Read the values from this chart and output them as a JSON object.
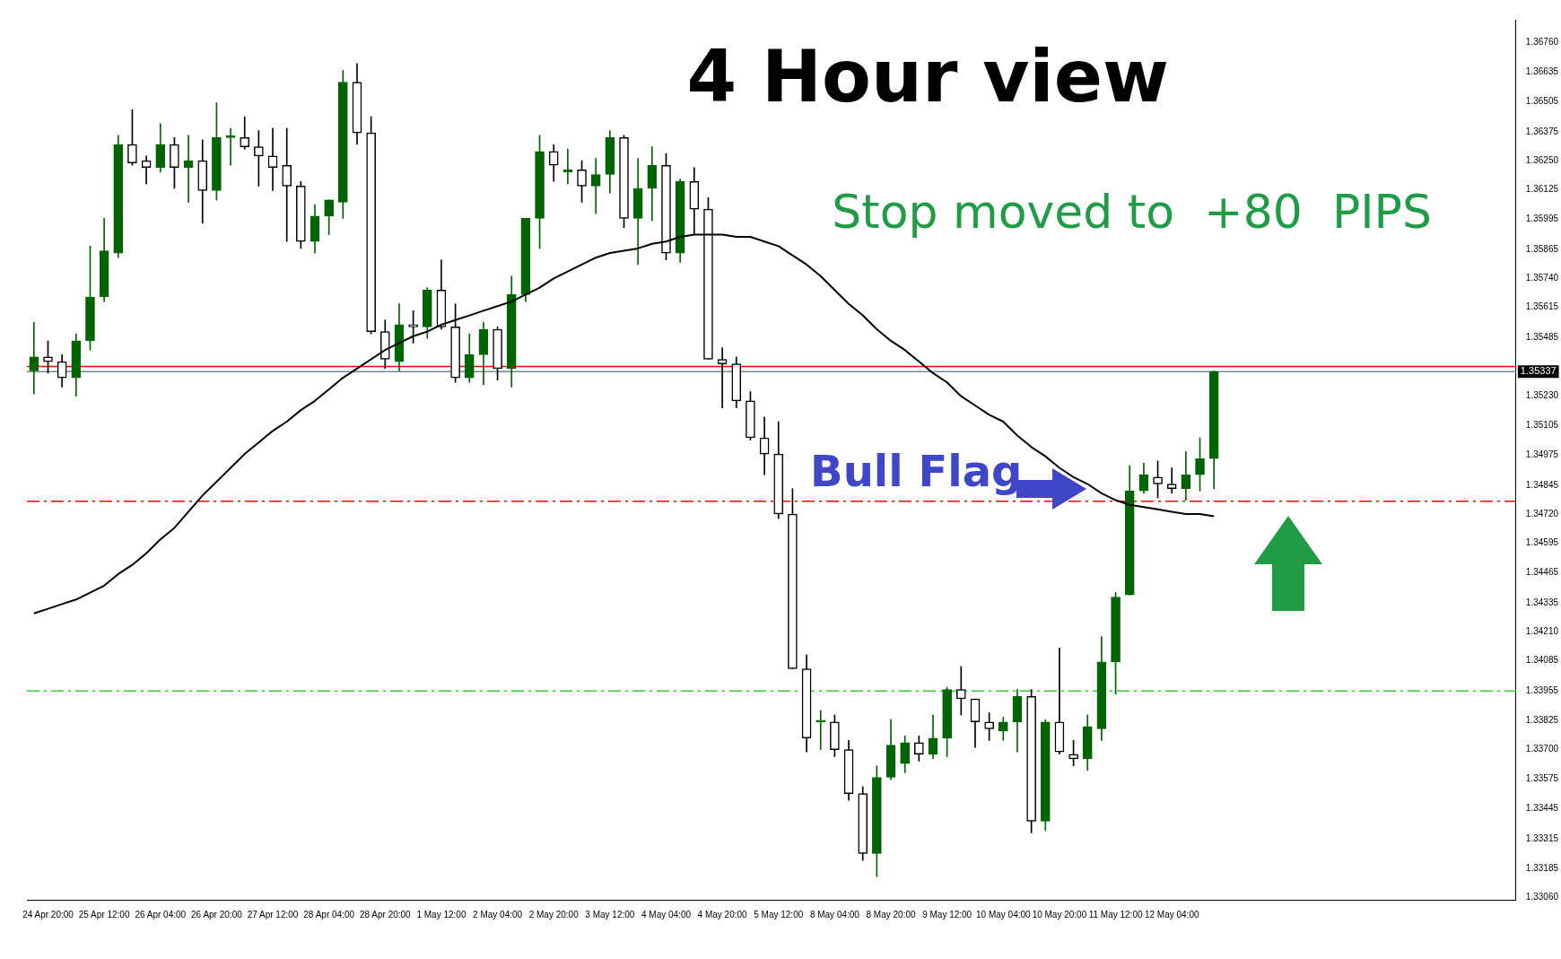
{
  "chart_data": {
    "type": "candlestick",
    "title": "4 Hour view",
    "annotations": [
      "Stop moved to  +80  PIPS",
      "Bull Flag"
    ],
    "categories": [
      null,
      "24 Apr 20:00",
      null,
      null,
      null,
      "25 Apr 12:00",
      null,
      null,
      null,
      "26 Apr 04:00",
      null,
      null,
      null,
      "26 Apr 20:00",
      null,
      null,
      null,
      "27 Apr 12:00",
      null,
      null,
      null,
      "28 Apr 04:00",
      null,
      null,
      null,
      "28 Apr 20:00",
      null,
      null,
      null,
      "1 May 12:00",
      null,
      null,
      null,
      "2 May 04:00",
      null,
      null,
      null,
      "2 May 20:00",
      null,
      null,
      null,
      "3 May 12:00",
      null,
      null,
      null,
      "4 May 04:00",
      null,
      null,
      null,
      "4 May 20:00",
      null,
      null,
      null,
      "5 May 12:00",
      null,
      null,
      null,
      "8 May 04:00",
      null,
      null,
      null,
      "8 May 20:00",
      null,
      null,
      null,
      "9 May 12:00",
      null,
      null,
      null,
      "10 May 04:00",
      null,
      null,
      null,
      "10 May 20:00",
      null,
      null,
      null,
      "11 May 12:00",
      null,
      null,
      null,
      "12 May 04:00",
      null,
      null,
      null,
      null,
      null,
      null,
      null,
      null,
      null,
      null,
      null,
      null,
      null,
      null,
      null,
      null,
      null,
      null,
      null,
      null,
      null,
      null,
      null,
      null
    ],
    "colors": [
      "#006400",
      "#000000",
      "#000000",
      "#006400",
      "#006400",
      "#006400",
      "#006400",
      "#000000",
      "#000000",
      "#006400",
      "#000000",
      "#006400",
      "#000000",
      "#006400",
      "#006400",
      "#000000",
      "#000000",
      "#000000",
      "#000000",
      "#000000",
      "#006400",
      "#006400",
      "#006400",
      "#000000",
      "#000000",
      "#000000",
      "#006400",
      "#000000",
      "#006400",
      "#000000",
      "#000000",
      "#006400",
      "#006400",
      "#000000",
      "#006400",
      "#006400",
      "#006400",
      "#000000",
      "#006400",
      "#000000",
      "#006400",
      "#006400",
      "#000000",
      "#006400",
      "#006400",
      "#000000",
      "#006400",
      "#000000",
      "#000000",
      "#000000",
      "#000000",
      "#000000",
      "#000000",
      "#000000",
      "#000000",
      "#000000",
      "#006400",
      "#000000",
      "#000000",
      "#000000",
      "#006400",
      "#006400",
      "#006400",
      "#000000",
      "#006400",
      "#006400",
      "#000000",
      "#000000",
      "#000000",
      "#006400",
      "#006400",
      "#000000",
      "#006400",
      "#000000",
      "#000000",
      "#006400",
      "#006400",
      "#006400",
      "#006400",
      "#006400",
      "#000000",
      "#000000",
      "#006400",
      "#006400",
      "#006400",
      null,
      null,
      null,
      null,
      null,
      null,
      null,
      null,
      null,
      null,
      null,
      null,
      null,
      null,
      null,
      null,
      null,
      null,
      null,
      null,
      null
    ],
    "ohlc": [
      [
        1.3534,
        1.3555,
        1.3524,
        1.354
      ],
      [
        1.354,
        1.3547,
        1.3533,
        1.3538
      ],
      [
        1.3538,
        1.3541,
        1.3527,
        1.3531
      ],
      [
        1.3531,
        1.355,
        1.3523,
        1.3547
      ],
      [
        1.3547,
        1.3588,
        1.3543,
        1.3566
      ],
      [
        1.3566,
        1.36,
        1.3564,
        1.3586
      ],
      [
        1.3585,
        1.3636,
        1.3583,
        1.3632
      ],
      [
        1.3632,
        1.3647,
        1.3623,
        1.3624
      ],
      [
        1.3625,
        1.3627,
        1.3615,
        1.3622
      ],
      [
        1.3622,
        1.3641,
        1.362,
        1.3632
      ],
      [
        1.3632,
        1.3635,
        1.3613,
        1.3622
      ],
      [
        1.3622,
        1.3636,
        1.3607,
        1.3625
      ],
      [
        1.3625,
        1.3634,
        1.3598,
        1.3612
      ],
      [
        1.3612,
        1.365,
        1.3608,
        1.3635
      ],
      [
        1.3635,
        1.3639,
        1.3623,
        1.3635
      ],
      [
        1.3635,
        1.3644,
        1.363,
        1.3631
      ],
      [
        1.3631,
        1.3638,
        1.3614,
        1.3627
      ],
      [
        1.3627,
        1.3639,
        1.3612,
        1.3622
      ],
      [
        1.3623,
        1.3639,
        1.359,
        1.3614
      ],
      [
        1.3614,
        1.3616,
        1.3587,
        1.359
      ],
      [
        1.359,
        1.3606,
        1.3585,
        1.3601
      ],
      [
        1.3601,
        1.3608,
        1.3593,
        1.3608
      ],
      [
        1.3607,
        1.3664,
        1.36,
        1.3659
      ],
      [
        1.3659,
        1.3667,
        1.3632,
        1.3637
      ],
      [
        1.3637,
        1.3644,
        1.355,
        1.3551
      ],
      [
        1.3551,
        1.3556,
        1.3535,
        1.3539
      ],
      [
        1.3538,
        1.3563,
        1.3534,
        1.3554
      ],
      [
        1.3554,
        1.356,
        1.3546,
        1.3553
      ],
      [
        1.3553,
        1.357,
        1.3548,
        1.3569
      ],
      [
        1.3569,
        1.3582,
        1.3552,
        1.3553
      ],
      [
        1.3553,
        1.3563,
        1.3529,
        1.3531
      ],
      [
        1.3531,
        1.355,
        1.3529,
        1.3541
      ],
      [
        1.3541,
        1.3555,
        1.3528,
        1.3552
      ],
      [
        1.3552,
        1.3553,
        1.353,
        1.3535
      ],
      [
        1.3535,
        1.3575,
        1.3527,
        1.3567
      ],
      [
        1.3567,
        1.36,
        1.3564,
        1.36
      ],
      [
        1.36,
        1.3636,
        1.3587,
        1.3629
      ],
      [
        1.3629,
        1.3632,
        1.3616,
        1.3623
      ],
      [
        1.362,
        1.363,
        1.3615,
        1.3621
      ],
      [
        1.3621,
        1.3625,
        1.3607,
        1.3614
      ],
      [
        1.3614,
        1.3626,
        1.3602,
        1.3619
      ],
      [
        1.3619,
        1.3638,
        1.3611,
        1.3635
      ],
      [
        1.3635,
        1.3636,
        1.3596,
        1.36
      ],
      [
        1.36,
        1.3626,
        1.358,
        1.3613
      ],
      [
        1.3613,
        1.3631,
        1.3599,
        1.3623
      ],
      [
        1.3623,
        1.3628,
        1.3582,
        1.3585
      ],
      [
        1.3585,
        1.3617,
        1.3581,
        1.3616
      ],
      [
        1.3616,
        1.3622,
        1.3593,
        1.3604
      ],
      [
        1.3604,
        1.3609,
        1.3539,
        1.3539
      ],
      [
        1.3539,
        1.3544,
        1.3518,
        1.3537
      ],
      [
        1.3537,
        1.354,
        1.3518,
        1.3521
      ],
      [
        1.3521,
        1.3525,
        1.3504,
        1.3505
      ],
      [
        1.3505,
        1.3514,
        1.3489,
        1.3498
      ],
      [
        1.3498,
        1.3512,
        1.347,
        1.3472
      ],
      [
        1.3472,
        1.3483,
        1.3405,
        1.3405
      ],
      [
        1.3405,
        1.3411,
        1.3369,
        1.3375
      ],
      [
        1.3382,
        1.3387,
        1.337,
        1.3382
      ],
      [
        1.3382,
        1.3385,
        1.3367,
        1.337
      ],
      [
        1.337,
        1.3374,
        1.3348,
        1.3351
      ],
      [
        1.3351,
        1.3354,
        1.3322,
        1.3325
      ],
      [
        1.3325,
        1.3363,
        1.3315,
        1.3358
      ],
      [
        1.3358,
        1.3383,
        1.3357,
        1.3372
      ],
      [
        1.3364,
        1.3376,
        1.336,
        1.3373
      ],
      [
        1.3373,
        1.3376,
        1.3365,
        1.3368
      ],
      [
        1.3368,
        1.3385,
        1.3366,
        1.3375
      ],
      [
        1.3375,
        1.3397,
        1.3367,
        1.3396
      ],
      [
        1.3396,
        1.3406,
        1.3385,
        1.3392
      ],
      [
        1.3392,
        1.3392,
        1.3371,
        1.3382
      ],
      [
        1.3382,
        1.3386,
        1.3374,
        1.3379
      ],
      [
        1.3378,
        1.3384,
        1.3374,
        1.3382
      ],
      [
        1.3382,
        1.3396,
        1.3369,
        1.3393
      ],
      [
        1.3393,
        1.3396,
        1.3334,
        1.3339
      ],
      [
        1.3339,
        1.3383,
        1.3335,
        1.3382
      ],
      [
        1.3382,
        1.3414,
        1.3368,
        1.3369
      ],
      [
        1.3368,
        1.3374,
        1.3363,
        1.3366
      ],
      [
        1.3366,
        1.3385,
        1.3361,
        1.338
      ],
      [
        1.3379,
        1.3419,
        1.3374,
        1.3408
      ],
      [
        1.3408,
        1.3438,
        1.3394,
        1.3436
      ],
      [
        1.3437,
        1.3493,
        1.3437,
        1.3482
      ],
      [
        1.3482,
        1.3494,
        1.3481,
        1.3489
      ],
      [
        1.3488,
        1.3495,
        1.3479,
        1.3485
      ],
      [
        1.3485,
        1.3492,
        1.3481,
        1.3483
      ],
      [
        1.3483,
        1.3499,
        1.3478,
        1.3489
      ],
      [
        1.3489,
        1.3505,
        1.3482,
        1.3496
      ],
      [
        1.3496,
        1.3534,
        1.3483,
        1.35337
      ],
      null,
      null,
      null,
      null,
      null,
      null,
      null,
      null,
      null,
      null,
      null,
      null,
      null,
      null,
      null,
      null,
      null,
      null,
      null,
      null,
      null
    ],
    "series": [
      {
        "type": "line",
        "color": "#000000",
        "values": [
          1.3429,
          1.3431,
          1.3433,
          1.3435,
          1.3438,
          1.3441,
          1.3446,
          1.345,
          1.3455,
          1.3461,
          1.3466,
          1.3473,
          1.348,
          1.3486,
          1.3492,
          1.3498,
          1.3503,
          1.3508,
          1.3512,
          1.3517,
          1.3521,
          1.3526,
          1.3531,
          1.3535,
          1.3539,
          1.3543,
          1.3546,
          1.3549,
          1.3551,
          1.3554,
          1.3556,
          1.3558,
          1.356,
          1.3562,
          1.3564,
          1.3567,
          1.357,
          1.3574,
          1.3577,
          1.358,
          1.3583,
          1.3585,
          1.3586,
          1.3587,
          1.3589,
          1.359,
          1.3592,
          1.3593,
          1.3593,
          1.3593,
          1.3592,
          1.3592,
          1.359,
          1.3588,
          1.3584,
          1.358,
          1.3575,
          1.3569,
          1.3563,
          1.3558,
          1.3552,
          1.3547,
          1.3543,
          1.3538,
          1.3533,
          1.3529,
          1.3523,
          1.3519,
          1.3515,
          1.3512,
          1.3506,
          1.3501,
          1.3497,
          1.3492,
          1.3488,
          1.3485,
          1.3481,
          1.3478,
          1.3476,
          1.3475,
          1.3474,
          1.3473,
          1.3472,
          1.3472,
          1.3471,
          null,
          null,
          null,
          null,
          null,
          null,
          null,
          null,
          null,
          null,
          null,
          null,
          null,
          null,
          null,
          null,
          null,
          null,
          null,
          null,
          null
        ]
      }
    ],
    "ylim": [
      1.3305,
      1.3686
    ],
    "yticks": [
      {
        "value": 1.3306,
        "label": "1.33060"
      },
      {
        "value": 1.33185,
        "label": "1.33185"
      },
      {
        "value": 1.33315,
        "label": "1.33315"
      },
      {
        "value": 1.33445,
        "label": "1.33445"
      },
      {
        "value": 1.33575,
        "label": "1.33575"
      },
      {
        "value": 1.337,
        "label": "1.33700"
      },
      {
        "value": 1.33825,
        "label": "1.33825"
      },
      {
        "value": 1.33955,
        "label": "1.33955"
      },
      {
        "value": 1.34085,
        "label": "1.34085"
      },
      {
        "value": 1.3421,
        "label": "1.34210"
      },
      {
        "value": 1.34335,
        "label": "1.34335"
      },
      {
        "value": 1.34465,
        "label": "1.34465"
      },
      {
        "value": 1.34595,
        "label": "1.34595"
      },
      {
        "value": 1.3472,
        "label": "1.34720"
      },
      {
        "value": 1.34845,
        "label": "1.34845"
      },
      {
        "value": 1.34975,
        "label": "1.34975"
      },
      {
        "value": 1.35105,
        "label": "1.35105"
      },
      {
        "value": 1.3523,
        "label": "1.35230"
      },
      {
        "value": 1.35485,
        "label": "1.35485"
      },
      {
        "value": 1.35615,
        "label": "1.35615"
      },
      {
        "value": 1.3574,
        "label": "1.35740"
      },
      {
        "value": 1.35865,
        "label": "1.35865"
      },
      {
        "value": 1.35995,
        "label": "1.35995"
      },
      {
        "value": 1.36125,
        "label": "1.36125"
      },
      {
        "value": 1.3625,
        "label": "1.36250"
      },
      {
        "value": 1.36375,
        "label": "1.36375"
      },
      {
        "value": 1.36505,
        "label": "1.36505"
      },
      {
        "value": 1.36635,
        "label": "1.36635"
      },
      {
        "value": 1.3676,
        "label": "1.36760"
      }
    ],
    "ref_lines": [
      {
        "axis": "y",
        "value": 1.35359,
        "color": "#ff0000",
        "line_style": "solid"
      },
      {
        "axis": "y",
        "value": 1.35337,
        "label": "1.35337",
        "color": "#778899",
        "line_style": "solid"
      },
      {
        "axis": "y",
        "value": 1.34775,
        "color": "#ff0000",
        "line_style": "dashed"
      },
      {
        "axis": "y",
        "value": 1.33954,
        "color": "#32cd32",
        "line_style": "dashed"
      }
    ],
    "grid": false,
    "legend": false
  }
}
